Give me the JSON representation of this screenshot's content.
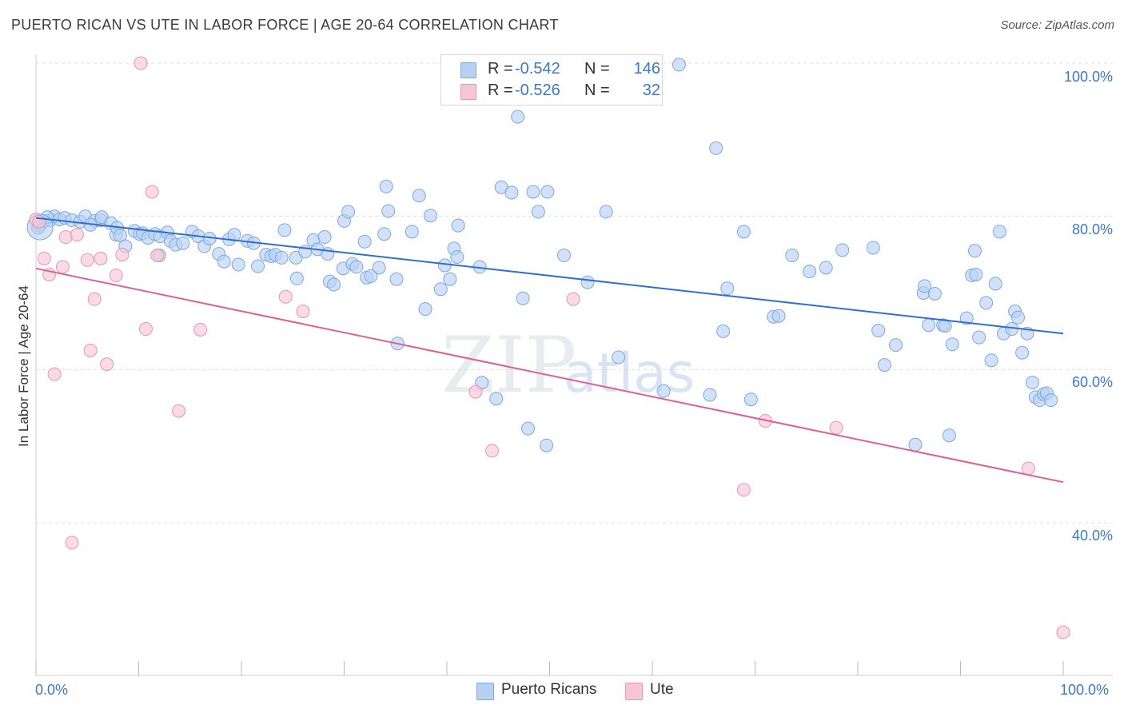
{
  "title": "PUERTO RICAN VS UTE IN LABOR FORCE | AGE 20-64 CORRELATION CHART",
  "source": "Source: ZipAtlas.com",
  "watermark": {
    "part1": "ZIP",
    "part2": "atlas"
  },
  "colors": {
    "blue_fill": "#b8d1f2",
    "blue_stroke": "#7ea8e0",
    "blue_line": "#2f6fd0",
    "pink_fill": "#f7c6d5",
    "pink_stroke": "#e996b2",
    "pink_line": "#e0608e",
    "tick_text": "#3a78d1",
    "grid": "#e0e0e0"
  },
  "legend_top": [
    {
      "r_label": "R =",
      "r_value": "-0.542",
      "n_label": "N =",
      "n_value": "146"
    },
    {
      "r_label": "R =",
      "r_value": "-0.526",
      "n_label": "N =",
      "n_value": "32"
    }
  ],
  "legend_bottom": [
    "Puerto Ricans",
    "Ute"
  ],
  "y_axis_label": "In Labor Force | Age 20-64",
  "y_ticks": [
    "100.0%",
    "80.0%",
    "60.0%",
    "40.0%"
  ],
  "x_ticks": [
    "0.0%",
    "100.0%"
  ],
  "chart_data": {
    "type": "scatter",
    "xlabel": "",
    "ylabel": "In Labor Force | Age 20-64",
    "xlim": [
      0,
      100
    ],
    "ylim": [
      20,
      100
    ],
    "grid": true,
    "legend_position": "top-center",
    "series": [
      {
        "name": "Puerto Ricans",
        "r": -0.542,
        "n": 146,
        "trend": {
          "x": [
            0,
            100
          ],
          "y": [
            79.8,
            64.7
          ]
        },
        "points": [
          [
            0.4,
            78.8
          ],
          [
            0.8,
            79.4
          ],
          [
            1.4,
            79.5
          ],
          [
            1.8,
            80.0
          ],
          [
            2.3,
            79.6
          ],
          [
            2.8,
            79.8
          ],
          [
            3.5,
            79.5
          ],
          [
            4.3,
            79.3
          ],
          [
            4.8,
            80.0
          ],
          [
            5.7,
            79.4
          ],
          [
            6.3,
            79.5
          ],
          [
            6.4,
            79.9
          ],
          [
            7.3,
            79.1
          ],
          [
            7.8,
            77.6
          ],
          [
            7.9,
            78.5
          ],
          [
            8.2,
            77.5
          ],
          [
            8.7,
            76.1
          ],
          [
            9.6,
            78.1
          ],
          [
            10.1,
            77.7
          ],
          [
            10.4,
            77.8
          ],
          [
            10.9,
            77.2
          ],
          [
            11.6,
            77.7
          ],
          [
            12.0,
            74.9
          ],
          [
            12.1,
            77.4
          ],
          [
            12.8,
            77.9
          ],
          [
            13.1,
            76.8
          ],
          [
            13.6,
            76.3
          ],
          [
            14.3,
            76.5
          ],
          [
            15.2,
            78.0
          ],
          [
            15.8,
            77.4
          ],
          [
            16.4,
            76.1
          ],
          [
            16.9,
            77.1
          ],
          [
            17.8,
            75.1
          ],
          [
            18.3,
            74.1
          ],
          [
            18.8,
            77.0
          ],
          [
            19.3,
            77.6
          ],
          [
            19.7,
            73.7
          ],
          [
            20.6,
            76.8
          ],
          [
            21.2,
            76.5
          ],
          [
            21.6,
            73.5
          ],
          [
            22.4,
            75.0
          ],
          [
            22.9,
            74.8
          ],
          [
            23.3,
            75.0
          ],
          [
            23.9,
            74.6
          ],
          [
            24.2,
            78.2
          ],
          [
            25.3,
            74.6
          ],
          [
            25.4,
            71.9
          ],
          [
            26.2,
            75.4
          ],
          [
            27.0,
            76.9
          ],
          [
            27.4,
            75.7
          ],
          [
            28.1,
            77.3
          ],
          [
            28.4,
            75.1
          ],
          [
            28.6,
            71.5
          ],
          [
            29.0,
            71.1
          ],
          [
            29.9,
            73.2
          ],
          [
            30.0,
            79.4
          ],
          [
            30.4,
            80.6
          ],
          [
            30.8,
            73.8
          ],
          [
            31.2,
            73.4
          ],
          [
            32.0,
            76.7
          ],
          [
            32.2,
            72.0
          ],
          [
            32.6,
            72.2
          ],
          [
            33.4,
            73.3
          ],
          [
            33.9,
            77.7
          ],
          [
            34.1,
            83.9
          ],
          [
            34.3,
            80.7
          ],
          [
            35.1,
            71.8
          ],
          [
            35.2,
            63.4
          ],
          [
            36.6,
            78.0
          ],
          [
            37.3,
            82.7
          ],
          [
            37.9,
            67.9
          ],
          [
            38.4,
            80.1
          ],
          [
            39.4,
            70.5
          ],
          [
            39.8,
            73.6
          ],
          [
            40.3,
            71.8
          ],
          [
            40.7,
            75.8
          ],
          [
            41.0,
            74.7
          ],
          [
            41.1,
            78.8
          ],
          [
            43.2,
            73.4
          ],
          [
            43.4,
            58.3
          ],
          [
            44.8,
            56.2
          ],
          [
            45.3,
            83.8
          ],
          [
            46.3,
            83.1
          ],
          [
            46.9,
            93.0
          ],
          [
            47.4,
            69.3
          ],
          [
            47.9,
            52.3
          ],
          [
            48.4,
            83.2
          ],
          [
            48.9,
            80.6
          ],
          [
            49.7,
            50.1
          ],
          [
            49.8,
            83.2
          ],
          [
            51.4,
            74.9
          ],
          [
            53.7,
            71.4
          ],
          [
            55.5,
            80.6
          ],
          [
            56.7,
            61.6
          ],
          [
            59.7,
            100.0
          ],
          [
            61.1,
            57.2
          ],
          [
            62.6,
            99.8
          ],
          [
            65.6,
            56.7
          ],
          [
            66.2,
            88.9
          ],
          [
            66.9,
            65.0
          ],
          [
            67.3,
            70.6
          ],
          [
            68.9,
            78.0
          ],
          [
            69.6,
            56.1
          ],
          [
            71.8,
            66.9
          ],
          [
            72.3,
            67.0
          ],
          [
            73.6,
            74.9
          ],
          [
            75.3,
            72.8
          ],
          [
            76.9,
            73.3
          ],
          [
            78.5,
            75.6
          ],
          [
            81.5,
            75.9
          ],
          [
            82.0,
            65.1
          ],
          [
            82.6,
            60.6
          ],
          [
            83.7,
            63.2
          ],
          [
            85.6,
            50.2
          ],
          [
            86.4,
            70.0
          ],
          [
            86.5,
            70.9
          ],
          [
            86.9,
            65.8
          ],
          [
            87.5,
            69.9
          ],
          [
            88.3,
            65.8
          ],
          [
            88.5,
            65.7
          ],
          [
            88.9,
            51.4
          ],
          [
            89.2,
            63.3
          ],
          [
            90.6,
            66.7
          ],
          [
            91.1,
            72.3
          ],
          [
            91.4,
            75.5
          ],
          [
            91.5,
            72.4
          ],
          [
            91.8,
            64.2
          ],
          [
            92.5,
            68.7
          ],
          [
            93.0,
            61.2
          ],
          [
            93.4,
            71.2
          ],
          [
            93.8,
            78.0
          ],
          [
            94.2,
            64.7
          ],
          [
            95.0,
            65.3
          ],
          [
            95.3,
            67.6
          ],
          [
            95.6,
            66.8
          ],
          [
            96.0,
            62.2
          ],
          [
            96.5,
            64.7
          ],
          [
            97.0,
            58.3
          ],
          [
            97.3,
            56.4
          ],
          [
            97.7,
            56.0
          ],
          [
            98.1,
            56.8
          ],
          [
            98.4,
            56.9
          ],
          [
            98.8,
            56.0
          ],
          [
            0.2,
            78.5
          ],
          [
            1.1,
            79.9
          ],
          [
            5.3,
            78.9
          ]
        ]
      },
      {
        "name": "Ute",
        "r": -0.526,
        "n": 32,
        "trend": {
          "x": [
            0,
            100
          ],
          "y": [
            73.2,
            45.3
          ]
        },
        "points": [
          [
            0.0,
            79.6
          ],
          [
            0.3,
            79.3
          ],
          [
            0.8,
            74.5
          ],
          [
            1.3,
            72.4
          ],
          [
            1.8,
            59.4
          ],
          [
            2.6,
            73.4
          ],
          [
            2.9,
            77.3
          ],
          [
            3.5,
            37.4
          ],
          [
            4.0,
            77.6
          ],
          [
            5.0,
            74.3
          ],
          [
            5.3,
            62.5
          ],
          [
            5.7,
            69.2
          ],
          [
            6.3,
            74.5
          ],
          [
            6.9,
            60.7
          ],
          [
            7.8,
            72.3
          ],
          [
            8.4,
            75.0
          ],
          [
            10.2,
            100.0
          ],
          [
            10.7,
            65.3
          ],
          [
            11.3,
            83.2
          ],
          [
            11.8,
            74.9
          ],
          [
            13.9,
            54.6
          ],
          [
            16.0,
            65.2
          ],
          [
            24.3,
            69.5
          ],
          [
            26.0,
            67.6
          ],
          [
            42.8,
            57.1
          ],
          [
            44.4,
            49.4
          ],
          [
            52.3,
            69.2
          ],
          [
            68.9,
            44.3
          ],
          [
            71.0,
            53.3
          ],
          [
            77.9,
            52.4
          ],
          [
            96.6,
            47.1
          ],
          [
            100.0,
            25.7
          ]
        ]
      }
    ]
  }
}
